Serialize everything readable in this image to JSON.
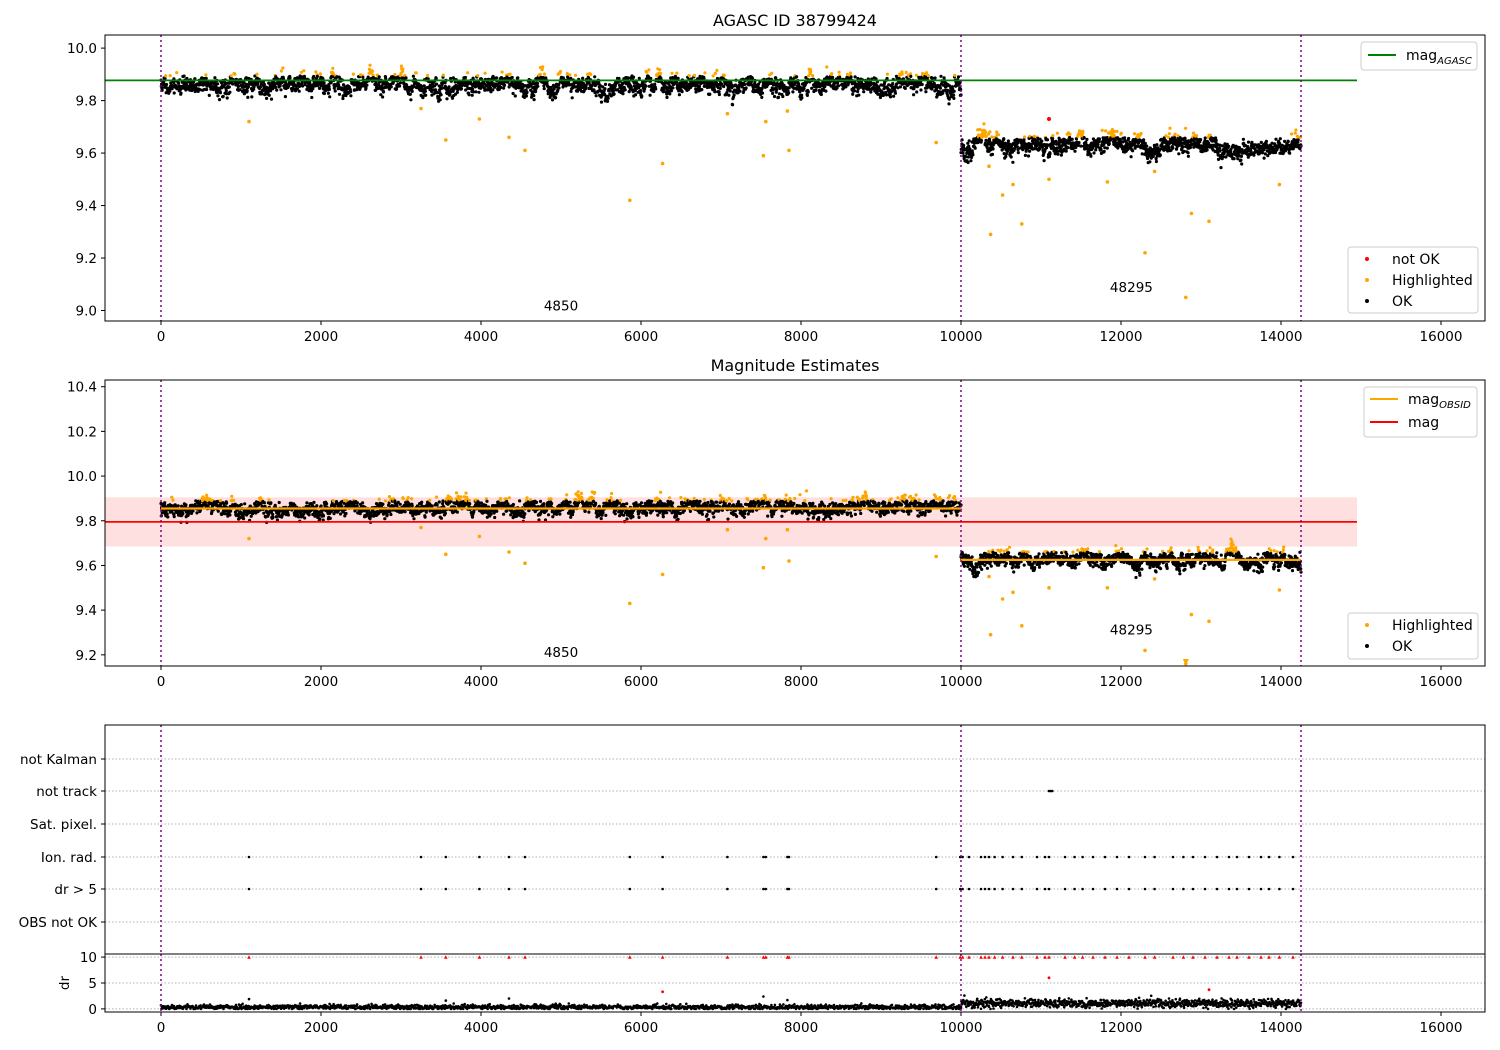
{
  "chart_data": [
    {
      "type": "scatter",
      "title": "AGASC ID 38799424",
      "xlabel": "",
      "ylabel": "",
      "xlim": [
        -700,
        16550
      ],
      "ylim": [
        8.96,
        10.05
      ],
      "xticks": [
        0,
        2000,
        4000,
        6000,
        8000,
        10000,
        12000,
        14000,
        16000
      ],
      "xtick_labels": [
        "0",
        "2000",
        "4000",
        "6000",
        "8000",
        "10000",
        "12000",
        "14000",
        "16000"
      ],
      "yticks": [
        9.0,
        9.2,
        9.4,
        9.6,
        9.8,
        10.0
      ],
      "ytick_labels": [
        "9.0",
        "9.2",
        "9.4",
        "9.6",
        "9.8",
        "10.0"
      ],
      "grid": false,
      "legend_placement": "top-right / lower-right",
      "obsid_boundaries": [
        0,
        10000,
        14250
      ],
      "obsid_labels": [
        {
          "text": "4850",
          "x": 5000,
          "y": 9.0
        },
        {
          "text": "48295",
          "x": 12130,
          "y": 9.07
        }
      ],
      "segments": [
        {
          "x_start": 0,
          "x_end": 10000,
          "mean": 9.86,
          "spread": 0.022,
          "seed": 11
        },
        {
          "x_start": 10000,
          "x_end": 14250,
          "mean": 9.625,
          "spread": 0.022,
          "seed": 23
        }
      ],
      "lines": [
        {
          "name": "mag_AGASC",
          "color": "#008000",
          "y": 9.877,
          "x_start": -700,
          "x_end": 14950
        }
      ],
      "series": [
        {
          "name": "not OK",
          "color": "#ff0000",
          "points": [
            [
              11100,
              9.73
            ]
          ]
        },
        {
          "name": "Highlighted",
          "color": "#ffa500",
          "points": [
            [
              1100,
              9.72
            ],
            [
              3250,
              9.77
            ],
            [
              3560,
              9.65
            ],
            [
              3980,
              9.73
            ],
            [
              4350,
              9.66
            ],
            [
              4550,
              9.61
            ],
            [
              5860,
              9.42
            ],
            [
              6270,
              9.56
            ],
            [
              7080,
              9.75
            ],
            [
              7530,
              9.59
            ],
            [
              7560,
              9.72
            ],
            [
              7830,
              9.76
            ],
            [
              7850,
              9.61
            ],
            [
              9690,
              9.64
            ],
            [
              10350,
              9.55
            ],
            [
              10370,
              9.29
            ],
            [
              10520,
              9.44
            ],
            [
              10650,
              9.48
            ],
            [
              10760,
              9.33
            ],
            [
              11100,
              9.5
            ],
            [
              11830,
              9.49
            ],
            [
              12300,
              9.22
            ],
            [
              12420,
              9.53
            ],
            [
              12810,
              9.05
            ],
            [
              12880,
              9.37
            ],
            [
              13100,
              9.34
            ],
            [
              13980,
              9.48
            ]
          ]
        },
        {
          "name": "OK",
          "color": "#000000",
          "points": []
        }
      ],
      "legend": [
        {
          "label": "mag",
          "sub": "AGASC",
          "kind": "line",
          "color": "#008000"
        },
        {
          "label": "not OK",
          "kind": "dot",
          "color": "#ff0000"
        },
        {
          "label": "Highlighted",
          "kind": "dot",
          "color": "#ffa500"
        },
        {
          "label": "OK",
          "kind": "dot",
          "color": "#000000"
        }
      ]
    },
    {
      "type": "scatter",
      "title": "Magnitude Estimates",
      "xlabel": "",
      "ylabel": "",
      "xlim": [
        -700,
        16550
      ],
      "ylim": [
        9.15,
        10.43
      ],
      "xticks": [
        0,
        2000,
        4000,
        6000,
        8000,
        10000,
        12000,
        14000,
        16000
      ],
      "xtick_labels": [
        "0",
        "2000",
        "4000",
        "6000",
        "8000",
        "10000",
        "12000",
        "14000",
        "16000"
      ],
      "yticks": [
        9.2,
        9.4,
        9.6,
        9.8,
        10.0,
        10.2,
        10.4
      ],
      "ytick_labels": [
        "9.2",
        "9.4",
        "9.6",
        "9.8",
        "10.0",
        "10.2",
        "10.4"
      ],
      "grid": false,
      "obsid_boundaries": [
        0,
        10000,
        14250
      ],
      "obsid_labels": [
        {
          "text": "4850",
          "x": 5000,
          "y": 9.19
        },
        {
          "text": "48295",
          "x": 12130,
          "y": 9.29
        }
      ],
      "segments": [
        {
          "x_start": 0,
          "x_end": 10000,
          "mean": 9.855,
          "spread": 0.022,
          "seed": 37
        },
        {
          "x_start": 10000,
          "x_end": 14250,
          "mean": 9.625,
          "spread": 0.022,
          "seed": 41
        }
      ],
      "mag_band": {
        "color": "#ffcccc",
        "y_low": 9.685,
        "y_high": 9.905,
        "x_start": -700,
        "x_end": 14950
      },
      "lines": [
        {
          "name": "mag",
          "color": "#ff0000",
          "y": 9.795,
          "x_start": -700,
          "x_end": 14950
        },
        {
          "name": "mag_OBSID",
          "color": "#ffa500",
          "y": 9.855,
          "x_start": 0,
          "x_end": 10000
        },
        {
          "name": "mag_OBSID",
          "color": "#ffa500",
          "y": 9.625,
          "x_start": 10000,
          "x_end": 14250
        }
      ],
      "series": [
        {
          "name": "Highlighted",
          "color": "#ffa500",
          "points": [
            [
              1100,
              9.72
            ],
            [
              3250,
              9.77
            ],
            [
              3560,
              9.65
            ],
            [
              3980,
              9.73
            ],
            [
              4350,
              9.66
            ],
            [
              4550,
              9.61
            ],
            [
              5860,
              9.43
            ],
            [
              6270,
              9.56
            ],
            [
              7080,
              9.76
            ],
            [
              7530,
              9.59
            ],
            [
              7560,
              9.72
            ],
            [
              7830,
              9.76
            ],
            [
              7850,
              9.62
            ],
            [
              9690,
              9.64
            ],
            [
              10350,
              9.55
            ],
            [
              10370,
              9.29
            ],
            [
              10520,
              9.45
            ],
            [
              10650,
              9.48
            ],
            [
              10760,
              9.33
            ],
            [
              11100,
              9.5
            ],
            [
              11830,
              9.5
            ],
            [
              12300,
              9.22
            ],
            [
              12420,
              9.54
            ],
            [
              12810,
              9.16
            ],
            [
              12880,
              9.38
            ],
            [
              13100,
              9.35
            ],
            [
              13980,
              9.49
            ]
          ]
        },
        {
          "name": "OK",
          "color": "#000000",
          "points": []
        }
      ],
      "legend": [
        {
          "label": "mag",
          "sub": "OBSID",
          "kind": "line",
          "color": "#ffa500"
        },
        {
          "label": "mag",
          "kind": "line",
          "color": "#ff0000"
        },
        {
          "label": "Highlighted",
          "kind": "dot",
          "color": "#ffa500"
        },
        {
          "label": "OK",
          "kind": "dot",
          "color": "#000000"
        }
      ]
    },
    {
      "type": "scatter",
      "title": "",
      "xlabel": "",
      "ylabel": "",
      "xlim": [
        -700,
        16550
      ],
      "ytick_labels": [
        "not Kalman",
        "not track",
        "Sat. pixel.",
        "Ion. rad.",
        "dr > 5",
        "OBS not OK"
      ],
      "grid": true,
      "obsid_boundaries": [
        0,
        10000,
        14250
      ],
      "flag_rows": [
        {
          "label": "not Kalman",
          "xs": []
        },
        {
          "label": "not track",
          "xs": [
            11100,
            11120,
            11140
          ]
        },
        {
          "label": "Sat. pixel.",
          "xs": []
        },
        {
          "label": "Ion. rad.",
          "xs": [
            1100,
            3250,
            3560,
            3980,
            4350,
            4550,
            5860,
            6270,
            7080,
            7530,
            7560,
            7830,
            7850,
            9690,
            9990,
            10020,
            10100,
            10250,
            10300,
            10350,
            10420,
            10520,
            10650,
            10760,
            10950,
            11050,
            11100,
            11300,
            11420,
            11520,
            11650,
            11800,
            11950,
            12100,
            12300,
            12420,
            12650,
            12780,
            12900,
            13050,
            13200,
            13350,
            13450,
            13600,
            13750,
            13850,
            13980,
            14150
          ]
        },
        {
          "label": "dr > 5",
          "xs": [
            1100,
            3250,
            3560,
            3980,
            4350,
            4550,
            5860,
            6270,
            7080,
            7530,
            7560,
            7830,
            7850,
            9690,
            9990,
            10020,
            10100,
            10250,
            10300,
            10350,
            10420,
            10520,
            10650,
            10760,
            10950,
            11050,
            11100,
            11300,
            11420,
            11520,
            11650,
            11800,
            11950,
            12100,
            12300,
            12420,
            12650,
            12780,
            12900,
            13050,
            13200,
            13350,
            13450,
            13600,
            13750,
            13850,
            13980,
            14150
          ]
        },
        {
          "label": "OBS not OK",
          "xs": []
        }
      ]
    },
    {
      "type": "scatter",
      "title": "",
      "xlabel": "",
      "ylabel": "dr",
      "xlim": [
        -700,
        16550
      ],
      "ylim": [
        -0.6,
        10.6
      ],
      "xticks": [
        0,
        2000,
        4000,
        6000,
        8000,
        10000,
        12000,
        14000,
        16000
      ],
      "xtick_labels": [
        "0",
        "2000",
        "4000",
        "6000",
        "8000",
        "10000",
        "12000",
        "14000",
        "16000"
      ],
      "yticks": [
        0,
        5,
        10
      ],
      "ytick_labels": [
        "0",
        "5",
        "10"
      ],
      "grid": true,
      "obsid_boundaries": [
        0,
        10000,
        14250
      ],
      "segments": [
        {
          "x_start": 0,
          "x_end": 10000,
          "mean": 0.35,
          "spread": 0.25,
          "seed": 53
        },
        {
          "x_start": 10000,
          "x_end": 14250,
          "mean": 1.05,
          "spread": 0.4,
          "seed": 59
        }
      ],
      "capped_points": {
        "color": "#ff0000",
        "y": 10,
        "xs": [
          1100,
          3250,
          3560,
          3980,
          4350,
          4550,
          5860,
          6270,
          7080,
          7530,
          7560,
          7830,
          7850,
          9690,
          9990,
          10020,
          10100,
          10250,
          10300,
          10350,
          10420,
          10520,
          10650,
          10760,
          10950,
          11050,
          11100,
          11300,
          11420,
          11520,
          11650,
          11800,
          11950,
          12100,
          12300,
          12420,
          12650,
          12780,
          12900,
          13050,
          13200,
          13350,
          13450,
          13600,
          13750,
          13850,
          13980,
          14150
        ]
      },
      "red_points": [
        [
          11100,
          6.0
        ],
        [
          6270,
          3.3
        ],
        [
          13100,
          3.7
        ]
      ],
      "series": [
        {
          "name": "dr",
          "color": "#000000",
          "points": [
            [
              1100,
              1.9
            ],
            [
              3560,
              1.6
            ],
            [
              4350,
              2.0
            ],
            [
              7530,
              2.4
            ],
            [
              7830,
              1.7
            ]
          ]
        }
      ]
    }
  ]
}
